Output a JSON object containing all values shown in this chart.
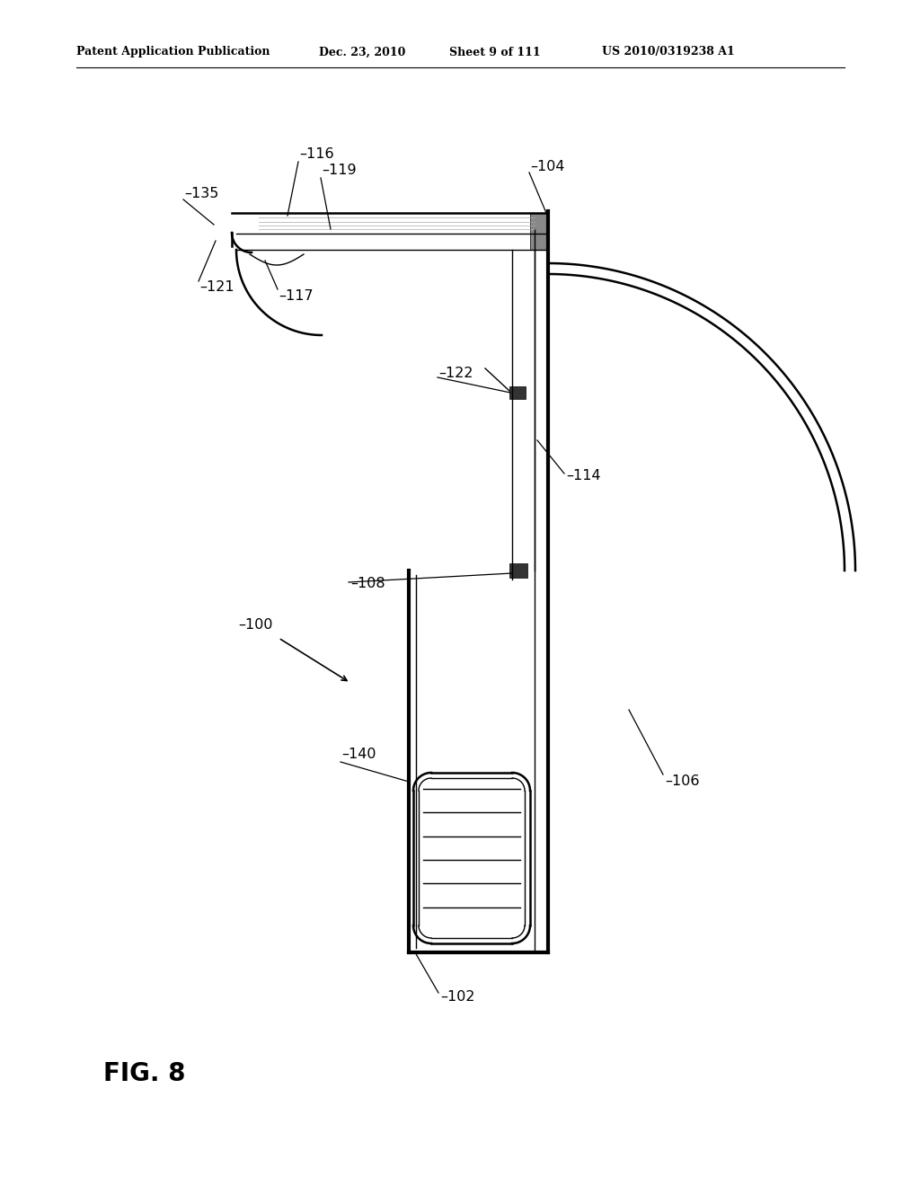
{
  "bg_color": "#ffffff",
  "line_color": "#000000",
  "header_text": "Patent Application Publication",
  "header_date": "Dec. 23, 2010",
  "header_sheet": "Sheet 9 of 111",
  "header_patent": "US 2010/0319238 A1",
  "fig_label": "FIG. 8"
}
